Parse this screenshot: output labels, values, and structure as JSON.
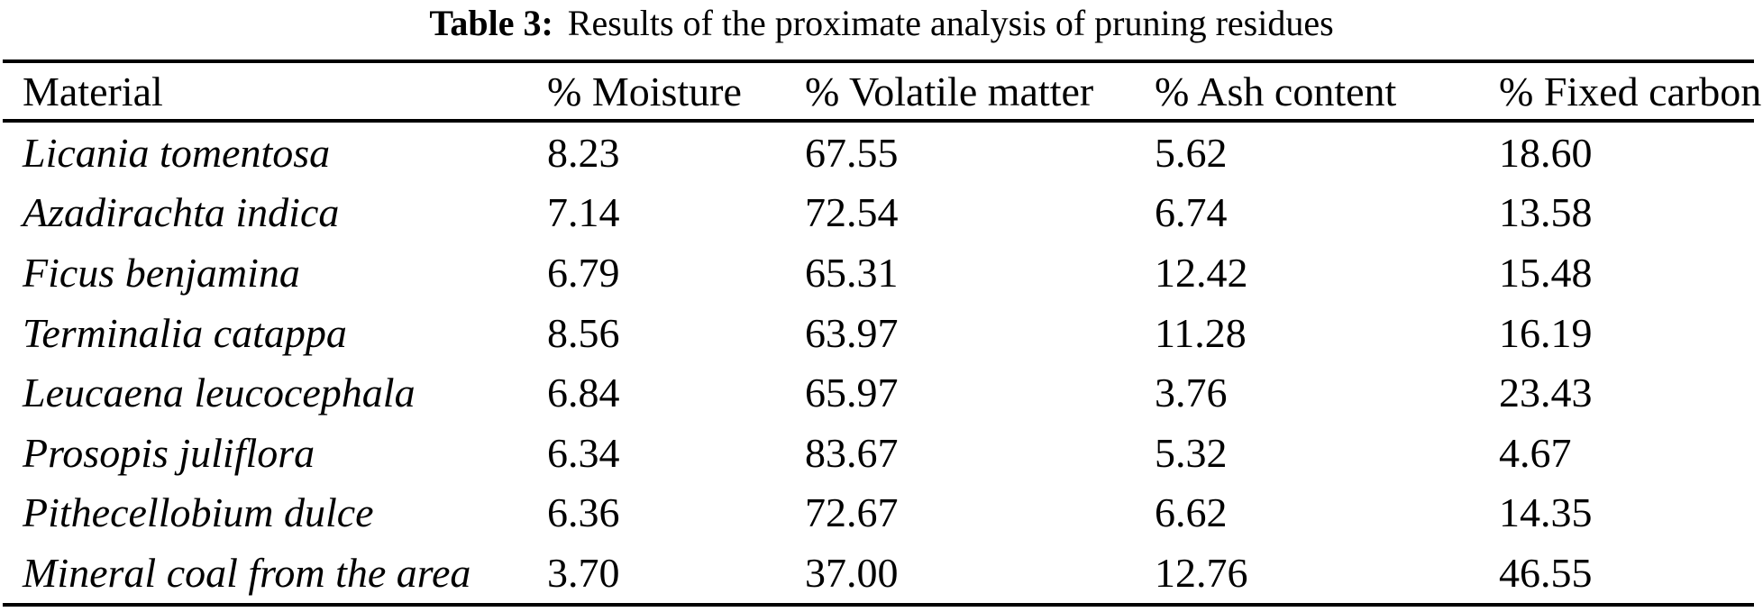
{
  "caption": {
    "label": "Table 3:",
    "text": "Results of the proximate analysis of pruning residues"
  },
  "table": {
    "columns": [
      {
        "key": "material",
        "label": "Material"
      },
      {
        "key": "moisture",
        "label": "% Moisture"
      },
      {
        "key": "volatile",
        "label": "% Volatile matter"
      },
      {
        "key": "ash",
        "label": "% Ash content"
      },
      {
        "key": "fixed",
        "label": "% Fixed carbon"
      }
    ],
    "rows": [
      {
        "material": "Licania tomentosa",
        "moisture": "8.23",
        "volatile": "67.55",
        "ash": "5.62",
        "fixed": "18.60"
      },
      {
        "material": "Azadirachta indica",
        "moisture": "7.14",
        "volatile": "72.54",
        "ash": "6.74",
        "fixed": "13.58"
      },
      {
        "material": "Ficus benjamina",
        "moisture": "6.79",
        "volatile": "65.31",
        "ash": "12.42",
        "fixed": "15.48"
      },
      {
        "material": "Terminalia catappa",
        "moisture": "8.56",
        "volatile": "63.97",
        "ash": "11.28",
        "fixed": "16.19"
      },
      {
        "material": "Leucaena leucocephala",
        "moisture": "6.84",
        "volatile": "65.97",
        "ash": "3.76",
        "fixed": "23.43"
      },
      {
        "material": "Prosopis juliflora",
        "moisture": "6.34",
        "volatile": "83.67",
        "ash": "5.32",
        "fixed": "4.67"
      },
      {
        "material": "Pithecellobium dulce",
        "moisture": "6.36",
        "volatile": "72.67",
        "ash": "6.62",
        "fixed": "14.35"
      },
      {
        "material": "Mineral coal from the area",
        "moisture": "3.70",
        "volatile": "37.00",
        "ash": "12.76",
        "fixed": "46.55"
      }
    ]
  },
  "colors": {
    "text": "#000000",
    "background": "#ffffff",
    "rule": "#000000"
  }
}
